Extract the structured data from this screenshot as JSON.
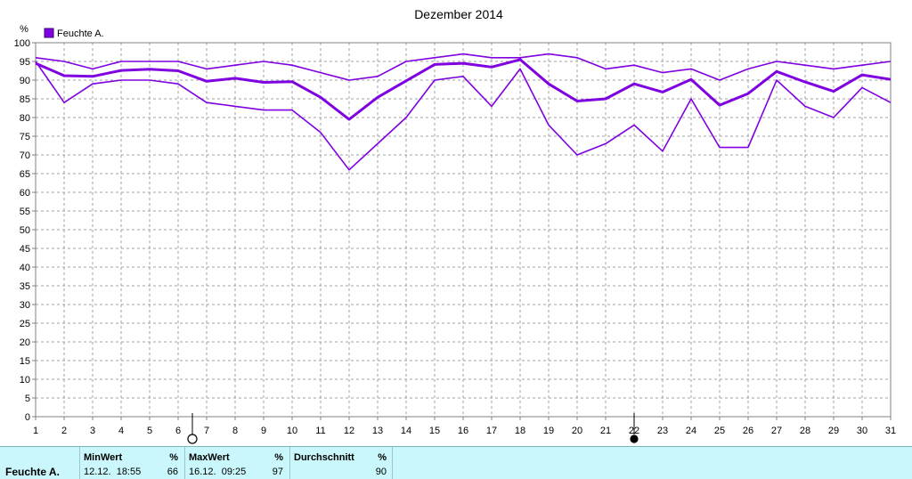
{
  "chart_data": {
    "type": "line",
    "title": "Dezember 2014",
    "ylabel": "%",
    "ylim": [
      0,
      100
    ],
    "yticks": [
      0,
      5,
      10,
      15,
      20,
      25,
      30,
      35,
      40,
      45,
      50,
      55,
      60,
      65,
      70,
      75,
      80,
      85,
      90,
      95,
      100
    ],
    "x": [
      1,
      2,
      3,
      4,
      5,
      6,
      7,
      8,
      9,
      10,
      11,
      12,
      13,
      14,
      15,
      16,
      17,
      18,
      19,
      20,
      21,
      22,
      23,
      24,
      25,
      26,
      27,
      28,
      29,
      30,
      31
    ],
    "grid": true,
    "legend": "top-left",
    "legend_entry": "Feuchte A.",
    "color": "#7f00e0",
    "series": [
      {
        "role": "max",
        "values": [
          96,
          95,
          93,
          95,
          95,
          95,
          93,
          94,
          95,
          94,
          92,
          90,
          91,
          95,
          96,
          97,
          96,
          96,
          97,
          96,
          93,
          94,
          92,
          93,
          90,
          93,
          95,
          94,
          93,
          94,
          95
        ]
      },
      {
        "role": "mean",
        "values": [
          94.5,
          91.2,
          91,
          92.6,
          92.9,
          92.5,
          89.7,
          90.5,
          89.4,
          89.6,
          85.4,
          79.5,
          85.4,
          89.8,
          94.2,
          94.5,
          93.5,
          95.5,
          89,
          84.4,
          85,
          89,
          86.8,
          90.2,
          83.3,
          86.4,
          92.3,
          89.5,
          87,
          91.4,
          90.2
        ]
      },
      {
        "role": "min",
        "values": [
          95,
          84,
          89,
          90,
          90,
          89,
          84,
          83,
          82,
          82,
          76,
          66,
          73,
          80,
          90,
          91,
          83,
          93,
          78,
          70,
          73,
          78,
          71,
          85,
          72,
          72,
          90,
          83,
          80,
          88,
          84
        ]
      }
    ],
    "moon_markers": [
      {
        "x": 6.5,
        "phase": "full"
      },
      {
        "x": 22,
        "phase": "new"
      }
    ]
  },
  "footer": {
    "series_label": "Feuchte A.",
    "min": {
      "header": "MinWert",
      "unit": "%",
      "time": "12.12.  18:55",
      "value": "66"
    },
    "max": {
      "header": "MaxWert",
      "unit": "%",
      "time": "16.12.  09:25",
      "value": "97"
    },
    "avg": {
      "header": "Durchschnitt",
      "unit": "%",
      "value": "90"
    }
  }
}
